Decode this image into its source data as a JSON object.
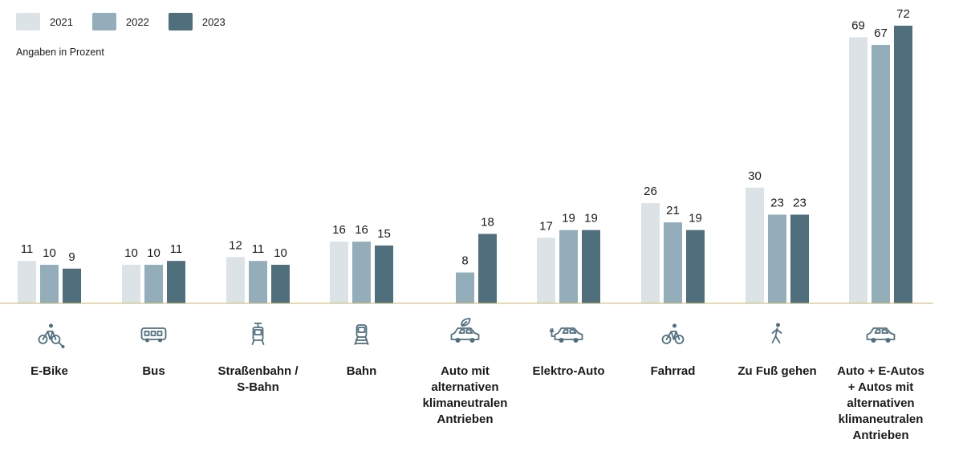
{
  "legend": {
    "items": [
      {
        "label": "2021",
        "color": "#dbe3e6"
      },
      {
        "label": "2022",
        "color": "#93aeba"
      },
      {
        "label": "2023",
        "color": "#506f7d"
      }
    ]
  },
  "unit_note": "Angaben in Prozent",
  "chart_data": {
    "type": "bar",
    "categories": [
      "E-Bike",
      "Bus",
      "Straßenbahn / S-Bahn",
      "Bahn",
      "Auto mit alternativen klimaneutralen Antrieben",
      "Elektro-Auto",
      "Fahrrad",
      "Zu Fuß gehen",
      "Auto + E-Autos + Autos mit alternativen klimaneutralen Antrieben"
    ],
    "category_lines": [
      [
        "E-Bike"
      ],
      [
        "Bus"
      ],
      [
        "Straßenbahn /",
        "S-Bahn"
      ],
      [
        "Bahn"
      ],
      [
        "Auto mit",
        "alternativen",
        "klimaneutralen",
        "Antrieben"
      ],
      [
        "Elektro-Auto"
      ],
      [
        "Fahrrad"
      ],
      [
        "Zu Fuß gehen"
      ],
      [
        "Auto + E-Autos",
        "+ Autos mit",
        "alternativen",
        "klimaneutralen",
        "Antrieben"
      ]
    ],
    "icons": [
      "ebike-icon",
      "bus-icon",
      "tram-icon",
      "train-icon",
      "eco-car-icon",
      "electric-car-icon",
      "bicycle-icon",
      "pedestrian-icon",
      "car-icon"
    ],
    "series": [
      {
        "name": "2021",
        "color": "#dbe3e6",
        "values": [
          11,
          10,
          12,
          16,
          null,
          17,
          26,
          30,
          69
        ]
      },
      {
        "name": "2022",
        "color": "#93aeba",
        "values": [
          10,
          10,
          11,
          16,
          8,
          19,
          21,
          23,
          67
        ]
      },
      {
        "name": "2023",
        "color": "#506f7d",
        "values": [
          9,
          11,
          10,
          15,
          18,
          19,
          19,
          23,
          72
        ]
      }
    ],
    "ylim": [
      0,
      72
    ],
    "grid": false,
    "legend_position": "top-left"
  }
}
